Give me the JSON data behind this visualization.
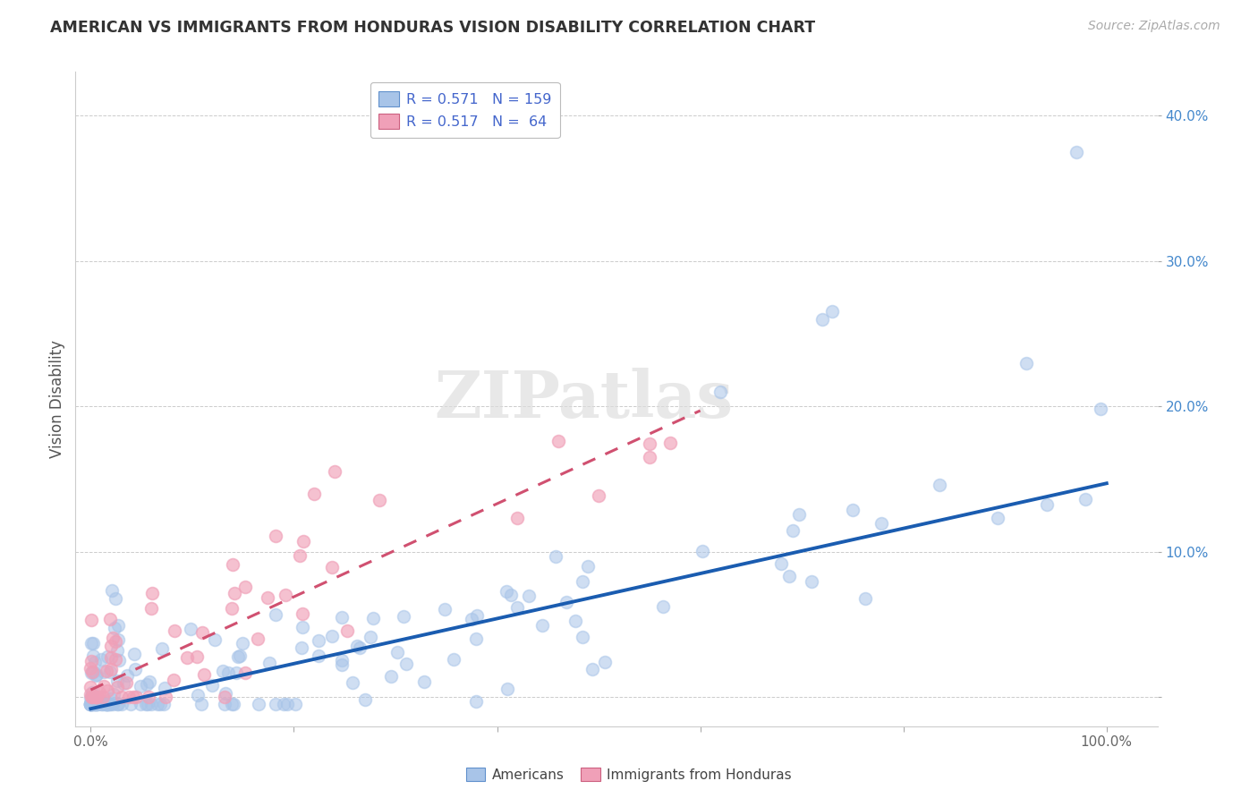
{
  "title": "AMERICAN VS IMMIGRANTS FROM HONDURAS VISION DISABILITY CORRELATION CHART",
  "source": "Source: ZipAtlas.com",
  "ylabel": "Vision Disability",
  "color_american": "#a8c4e8",
  "color_immigrant": "#f0a0b8",
  "color_line_american": "#1a5cb0",
  "color_line_immigrant": "#d05070",
  "background_color": "#ffffff",
  "grid_color": "#cccccc",
  "slope_am": 0.155,
  "intercept_am": -0.008,
  "slope_im": 0.32,
  "intercept_im": 0.005,
  "x_line_am_end": 1.0,
  "x_line_im_end": 0.6,
  "xlim_min": -0.015,
  "xlim_max": 1.05,
  "ylim_min": -0.02,
  "ylim_max": 0.43,
  "ytick_vals": [
    0.0,
    0.1,
    0.2,
    0.3,
    0.4
  ],
  "ytick_labels": [
    "",
    "10.0%",
    "20.0%",
    "30.0%",
    "40.0%"
  ],
  "xtick_vals": [
    0.0,
    0.2,
    0.4,
    0.6,
    0.8,
    1.0
  ],
  "xtick_labels": [
    "0.0%",
    "",
    "",
    "",
    "",
    "100.0%"
  ],
  "watermark_text": "ZIPatlas",
  "legend_line1": "R = 0.571   N = 159",
  "legend_line2": "R = 0.517   N =  64",
  "marker_size": 100,
  "N_am": 159,
  "N_im": 64,
  "random_seed": 7
}
